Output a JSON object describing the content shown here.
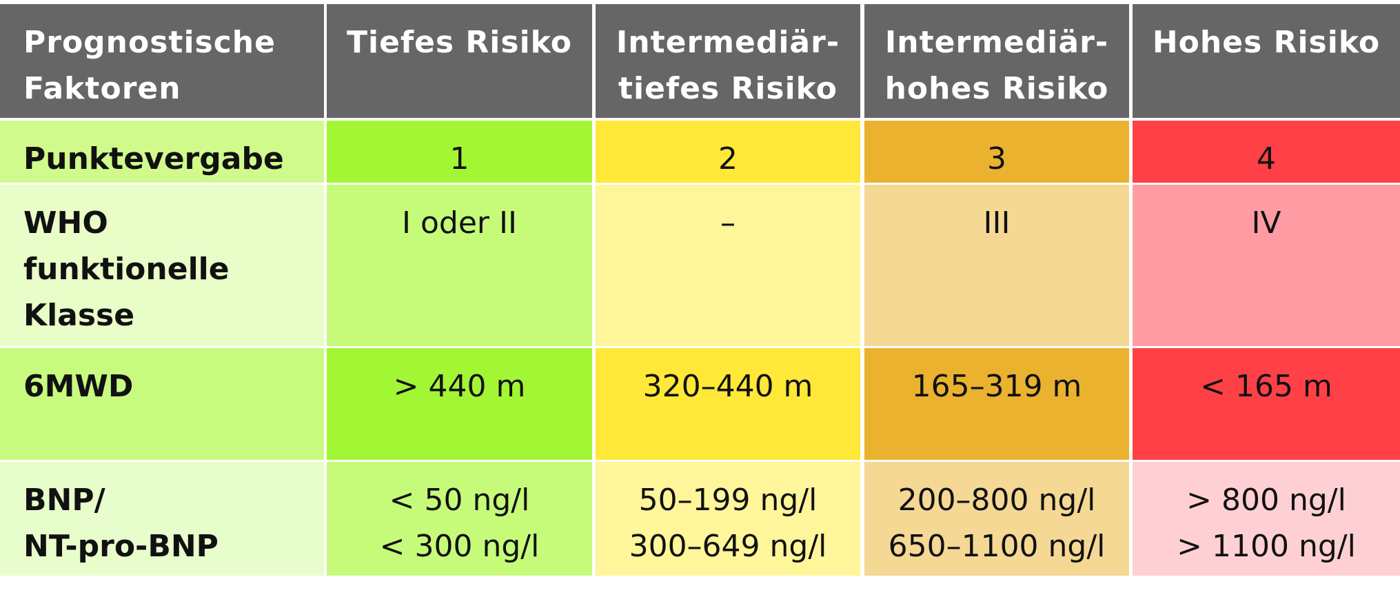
{
  "table": {
    "header": [
      "Prognostische\nFaktoren",
      "Tiefes Risiko",
      "Intermediär-\ntiefes Risiko",
      "Intermediär-\nhohes Risiko",
      "Hohes Risiko"
    ],
    "rows": [
      [
        "Punktevergabe",
        "1",
        "2",
        "3",
        "4"
      ],
      [
        "WHO\nfunktionelle\nKlasse",
        "I oder II",
        "–",
        "III",
        "IV"
      ],
      [
        "6MWD",
        "> 440 m",
        "320–440 m",
        "165–319 m",
        "< 165 m"
      ],
      [
        "BNP/\nNT-pro-BNP",
        "< 50 ng/l\n< 300 ng/l",
        "50–199 ng/l\n300–649 ng/l",
        "200–800 ng/l\n650–1100 ng/l",
        "> 800 ng/l\n> 1100 ng/l"
      ]
    ]
  }
}
